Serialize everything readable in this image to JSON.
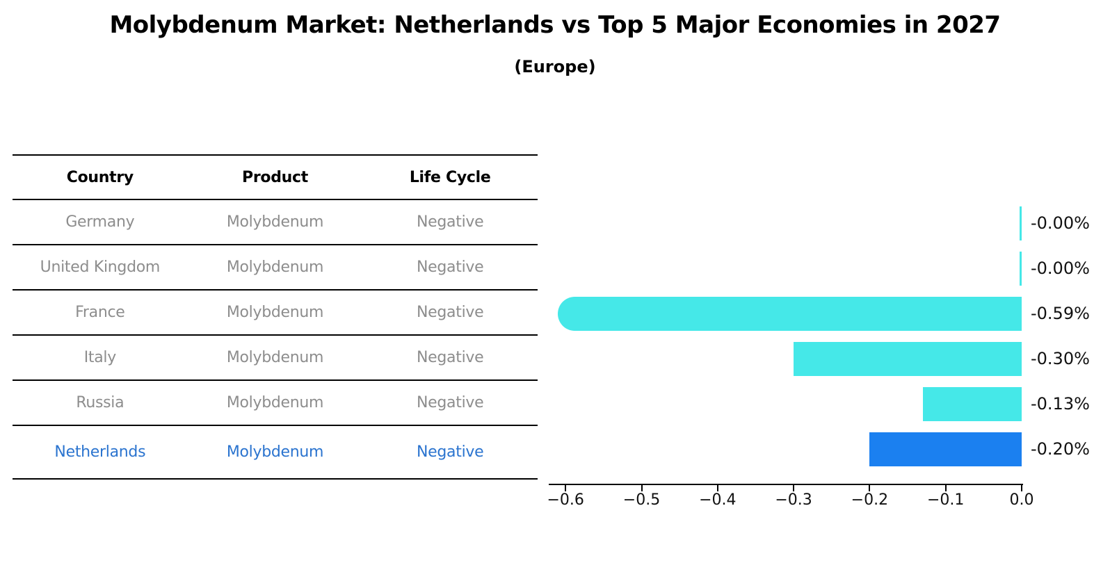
{
  "title": "Molybdenum Market: Netherlands vs Top 5 Major Economies in 2027",
  "subtitle": "(Europe)",
  "table": {
    "headers": [
      "Country",
      "Product",
      "Life Cycle"
    ],
    "rows": [
      {
        "country": "Germany",
        "product": "Molybdenum",
        "life_cycle": "Negative",
        "highlighted": false
      },
      {
        "country": "United Kingdom",
        "product": "Molybdenum",
        "life_cycle": "Negative",
        "highlighted": false
      },
      {
        "country": "France",
        "product": "Molybdenum",
        "life_cycle": "Negative",
        "highlighted": false
      },
      {
        "country": "Italy",
        "product": "Molybdenum",
        "life_cycle": "Negative",
        "highlighted": false
      },
      {
        "country": "Russia",
        "product": "Molybdenum",
        "life_cycle": "Negative",
        "highlighted": true
      }
    ],
    "highlighted_row": {
      "country": "Netherlands",
      "product": "Molybdenum",
      "life_cycle": "Negative"
    }
  },
  "chart_data": {
    "type": "bar",
    "orientation": "horizontal",
    "categories": [
      "Germany",
      "United Kingdom",
      "France",
      "Italy",
      "Russia",
      "Netherlands"
    ],
    "values": [
      -0.0,
      -0.0,
      -0.59,
      -0.3,
      -0.13,
      -0.2
    ],
    "value_labels": [
      "-0.00%",
      "-0.00%",
      "-0.59%",
      "-0.30%",
      "-0.13%",
      "-0.20%"
    ],
    "title": "Molybdenum Market: Netherlands vs Top 5 Major Economies in 2027 (Europe)",
    "xlabel": "",
    "ylabel": "",
    "xlim": [
      -0.6,
      0.0
    ],
    "x_tick_values": [
      -0.6,
      -0.5,
      -0.4,
      -0.3,
      -0.2,
      -0.1,
      0.0
    ],
    "x_tick_labels": [
      "−0.6",
      "−0.5",
      "−0.4",
      "−0.3",
      "−0.2",
      "−0.1",
      "0.0"
    ],
    "grid": false,
    "legend": "none",
    "bar_color": "#45e8e8",
    "highlight_color": "#1b80f0",
    "highlight_index": 5,
    "highlight_text_color": "#2b74cf"
  }
}
